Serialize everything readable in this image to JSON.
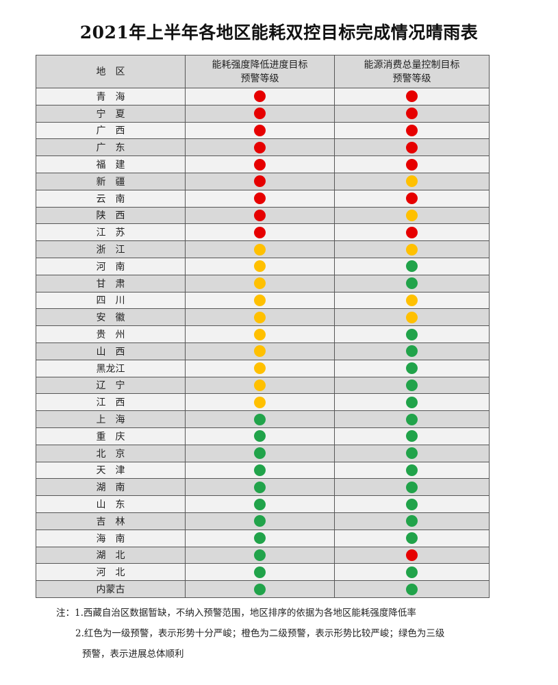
{
  "title": "2021年上半年各地区能耗双控目标完成情况晴雨表",
  "headers": {
    "region": "地　区",
    "intensity": [
      "能耗强度降低进度目标",
      "预警等级"
    ],
    "total": [
      "能源消费总量控制目标",
      "预警等级"
    ]
  },
  "colors": {
    "red": "#e60000",
    "orange": "#ffc000",
    "green": "#21a34a"
  },
  "rows": [
    {
      "region": "青　海",
      "intensity": "red",
      "total": "red"
    },
    {
      "region": "宁　夏",
      "intensity": "red",
      "total": "red"
    },
    {
      "region": "广　西",
      "intensity": "red",
      "total": "red"
    },
    {
      "region": "广　东",
      "intensity": "red",
      "total": "red"
    },
    {
      "region": "福　建",
      "intensity": "red",
      "total": "red"
    },
    {
      "region": "新　疆",
      "intensity": "red",
      "total": "orange"
    },
    {
      "region": "云　南",
      "intensity": "red",
      "total": "red"
    },
    {
      "region": "陕　西",
      "intensity": "red",
      "total": "orange"
    },
    {
      "region": "江　苏",
      "intensity": "red",
      "total": "red"
    },
    {
      "region": "浙　江",
      "intensity": "orange",
      "total": "orange"
    },
    {
      "region": "河　南",
      "intensity": "orange",
      "total": "green"
    },
    {
      "region": "甘　肃",
      "intensity": "orange",
      "total": "green"
    },
    {
      "region": "四　川",
      "intensity": "orange",
      "total": "orange"
    },
    {
      "region": "安　徽",
      "intensity": "orange",
      "total": "orange"
    },
    {
      "region": "贵　州",
      "intensity": "orange",
      "total": "green"
    },
    {
      "region": "山　西",
      "intensity": "orange",
      "total": "green"
    },
    {
      "region": "黑龙江",
      "intensity": "orange",
      "total": "green"
    },
    {
      "region": "辽　宁",
      "intensity": "orange",
      "total": "green"
    },
    {
      "region": "江　西",
      "intensity": "orange",
      "total": "green"
    },
    {
      "region": "上　海",
      "intensity": "green",
      "total": "green"
    },
    {
      "region": "重　庆",
      "intensity": "green",
      "total": "green"
    },
    {
      "region": "北　京",
      "intensity": "green",
      "total": "green"
    },
    {
      "region": "天　津",
      "intensity": "green",
      "total": "green"
    },
    {
      "region": "湖　南",
      "intensity": "green",
      "total": "green"
    },
    {
      "region": "山　东",
      "intensity": "green",
      "total": "green"
    },
    {
      "region": "吉　林",
      "intensity": "green",
      "total": "green"
    },
    {
      "region": "海　南",
      "intensity": "green",
      "total": "green"
    },
    {
      "region": "湖　北",
      "intensity": "green",
      "total": "red"
    },
    {
      "region": "河　北",
      "intensity": "green",
      "total": "green"
    },
    {
      "region": "内蒙古",
      "intensity": "green",
      "total": "green"
    }
  ],
  "notes": [
    "注：1.西藏自治区数据暂缺，不纳入预警范围，地区排序的依据为各地区能耗强度降低率",
    "2.红色为一级预警，表示形势十分严峻；橙色为二级预警，表示形势比较严峻；绿色为三级",
    "预警，表示进展总体顺利"
  ]
}
